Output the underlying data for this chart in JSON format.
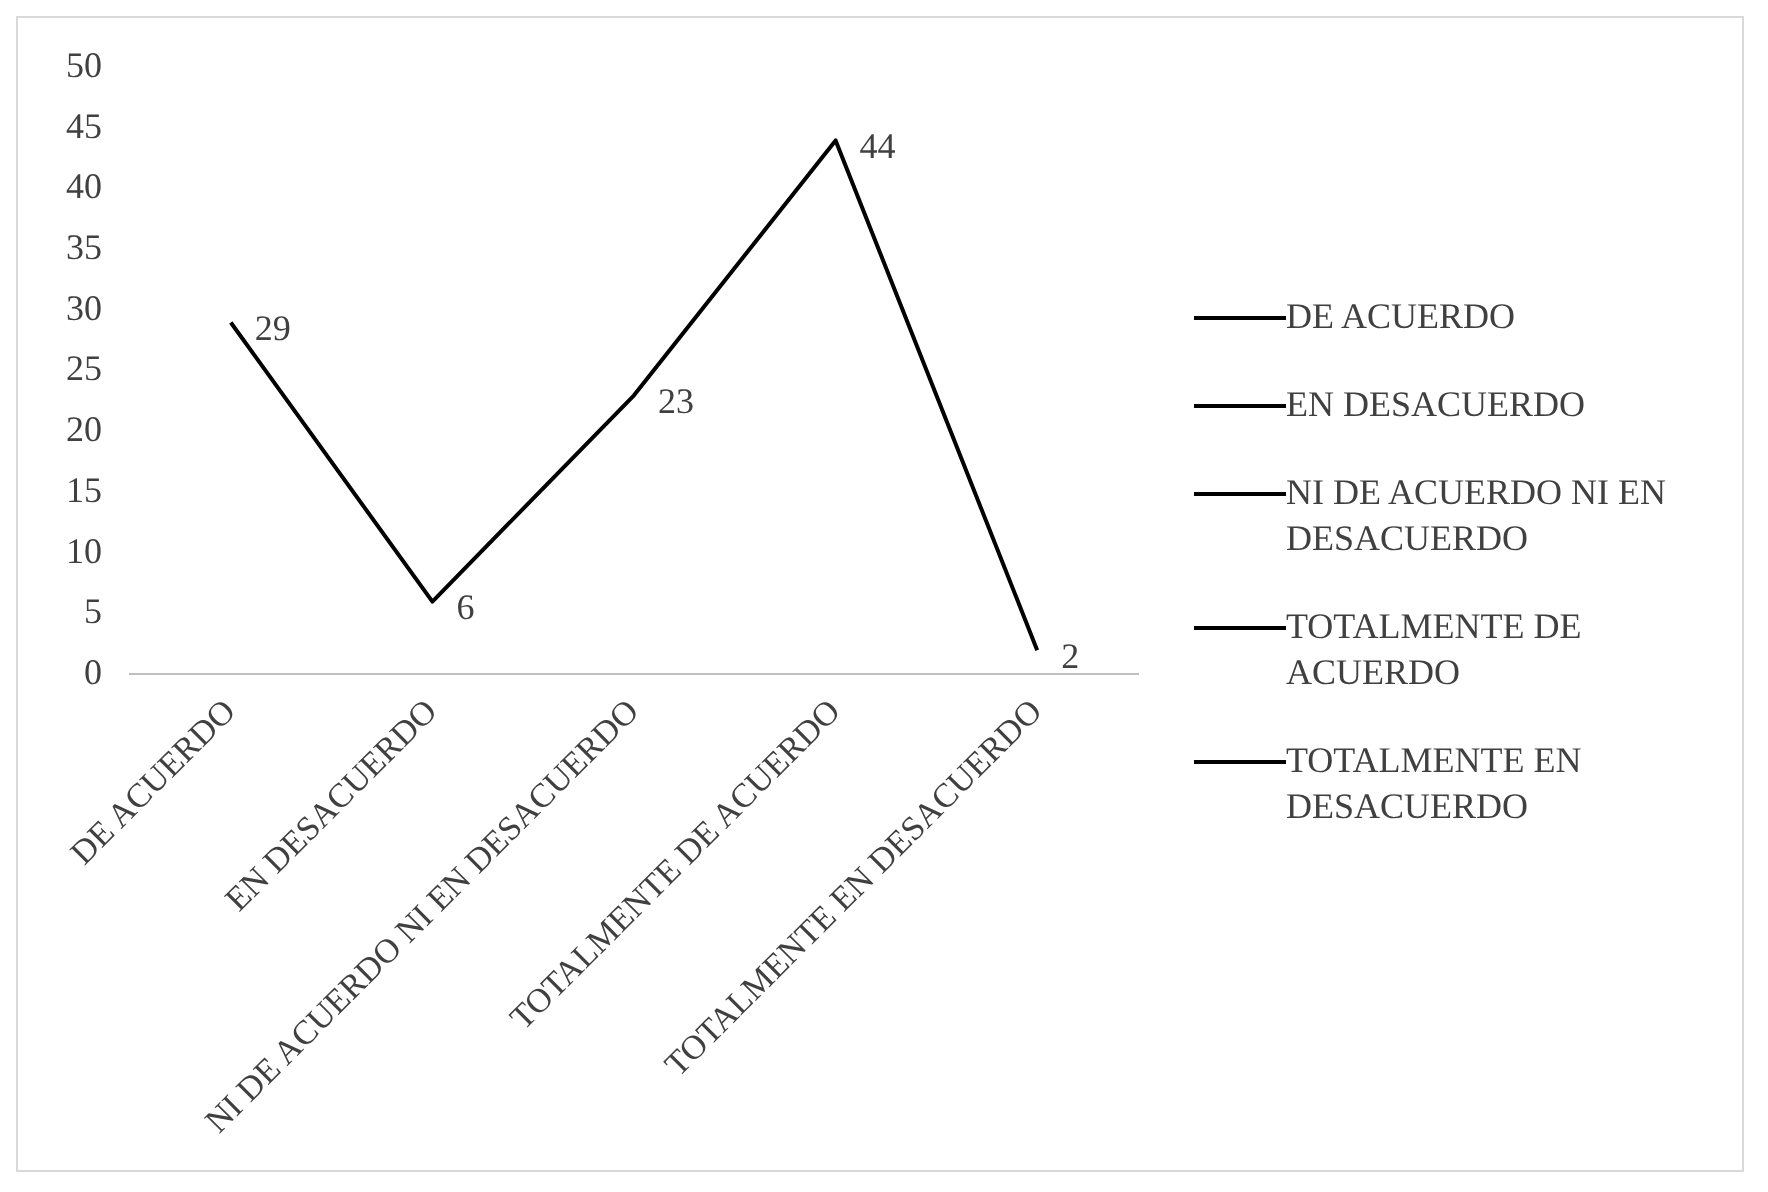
{
  "chart_data": {
    "type": "line",
    "categories": [
      "DE ACUERDO",
      "EN DESACUERDO",
      "NI DE ACUERDO NI EN DESACUERDO",
      "TOTALMENTE DE ACUERDO",
      "TOTALMENTE EN DESACUERDO"
    ],
    "series": [
      {
        "color": "#000000",
        "values": [
          29,
          6,
          23,
          44,
          2
        ]
      }
    ],
    "ylim": [
      0,
      50
    ],
    "yticks": [
      0,
      5,
      10,
      15,
      20,
      25,
      30,
      35,
      40,
      45,
      50
    ],
    "grid": false,
    "data_labels": true,
    "marker": "none",
    "line_style": "solid"
  }
}
